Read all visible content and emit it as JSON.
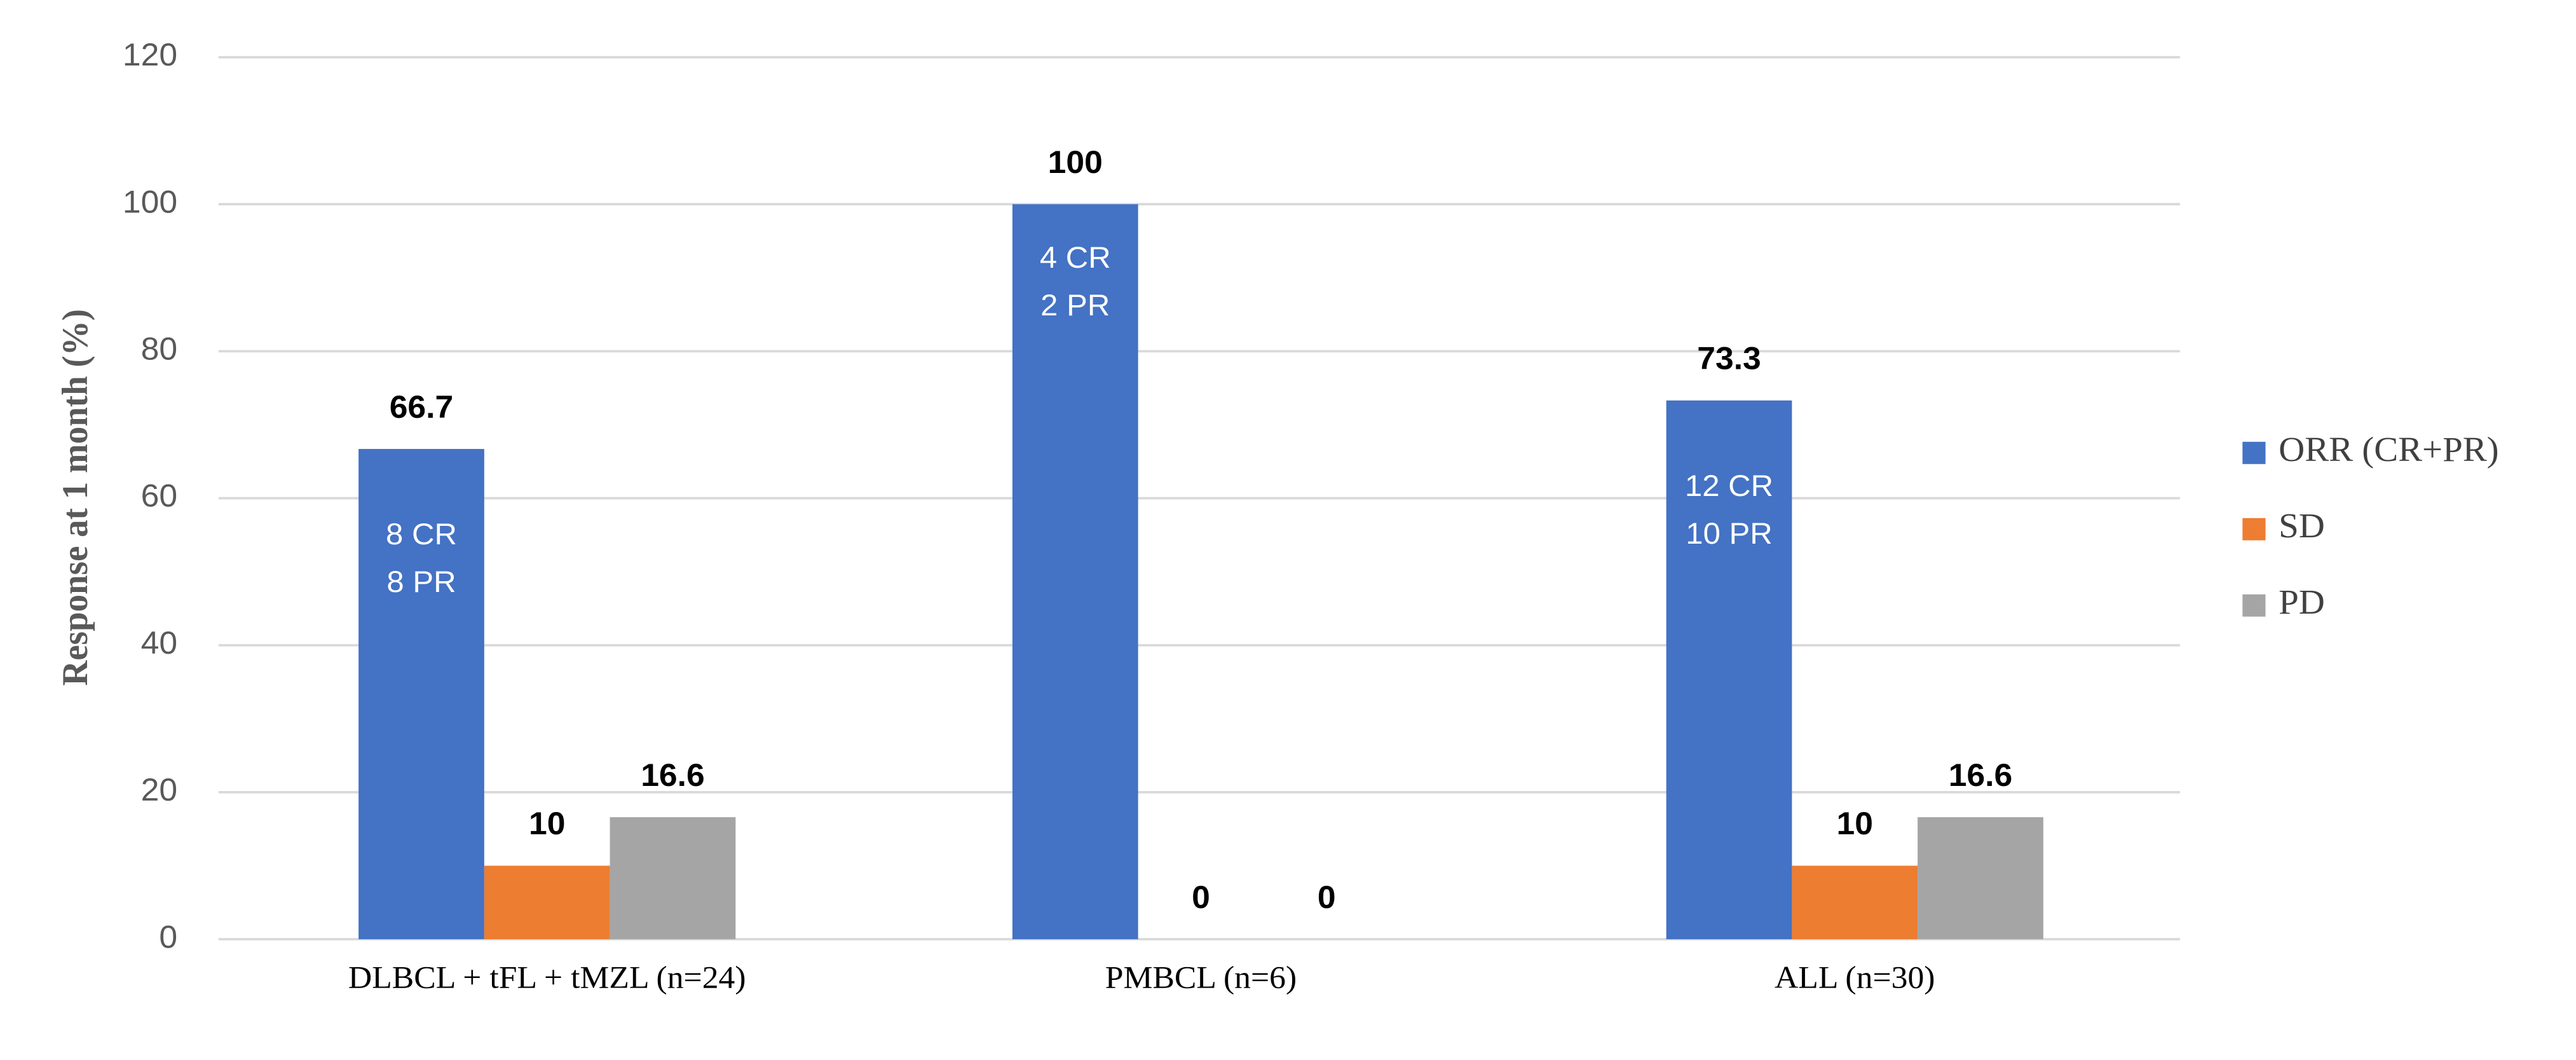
{
  "chart_data": {
    "type": "bar",
    "y_label": "Response at 1 month (%)",
    "categories": [
      "DLBCL + tFL + tMZL (n=24)",
      "PMBCL (n=6)",
      "ALL (n=30)"
    ],
    "series": [
      {
        "name": "ORR (CR+PR)",
        "color": "#4472c4",
        "values": [
          66.7,
          100,
          73.3
        ],
        "inner_labels": [
          [
            "8 CR",
            "8 PR"
          ],
          [
            "4 CR",
            "2 PR"
          ],
          [
            "12 CR",
            "10 PR"
          ]
        ]
      },
      {
        "name": "SD",
        "color": "#ed7d31",
        "values": [
          10,
          0,
          10
        ]
      },
      {
        "name": "PD",
        "color": "#a5a5a5",
        "values": [
          16.6,
          0,
          16.6
        ]
      }
    ],
    "ylim": [
      0,
      120
    ],
    "yticks": [
      0,
      20,
      40,
      60,
      80,
      100,
      120
    ],
    "grid": true,
    "legend": "right"
  }
}
